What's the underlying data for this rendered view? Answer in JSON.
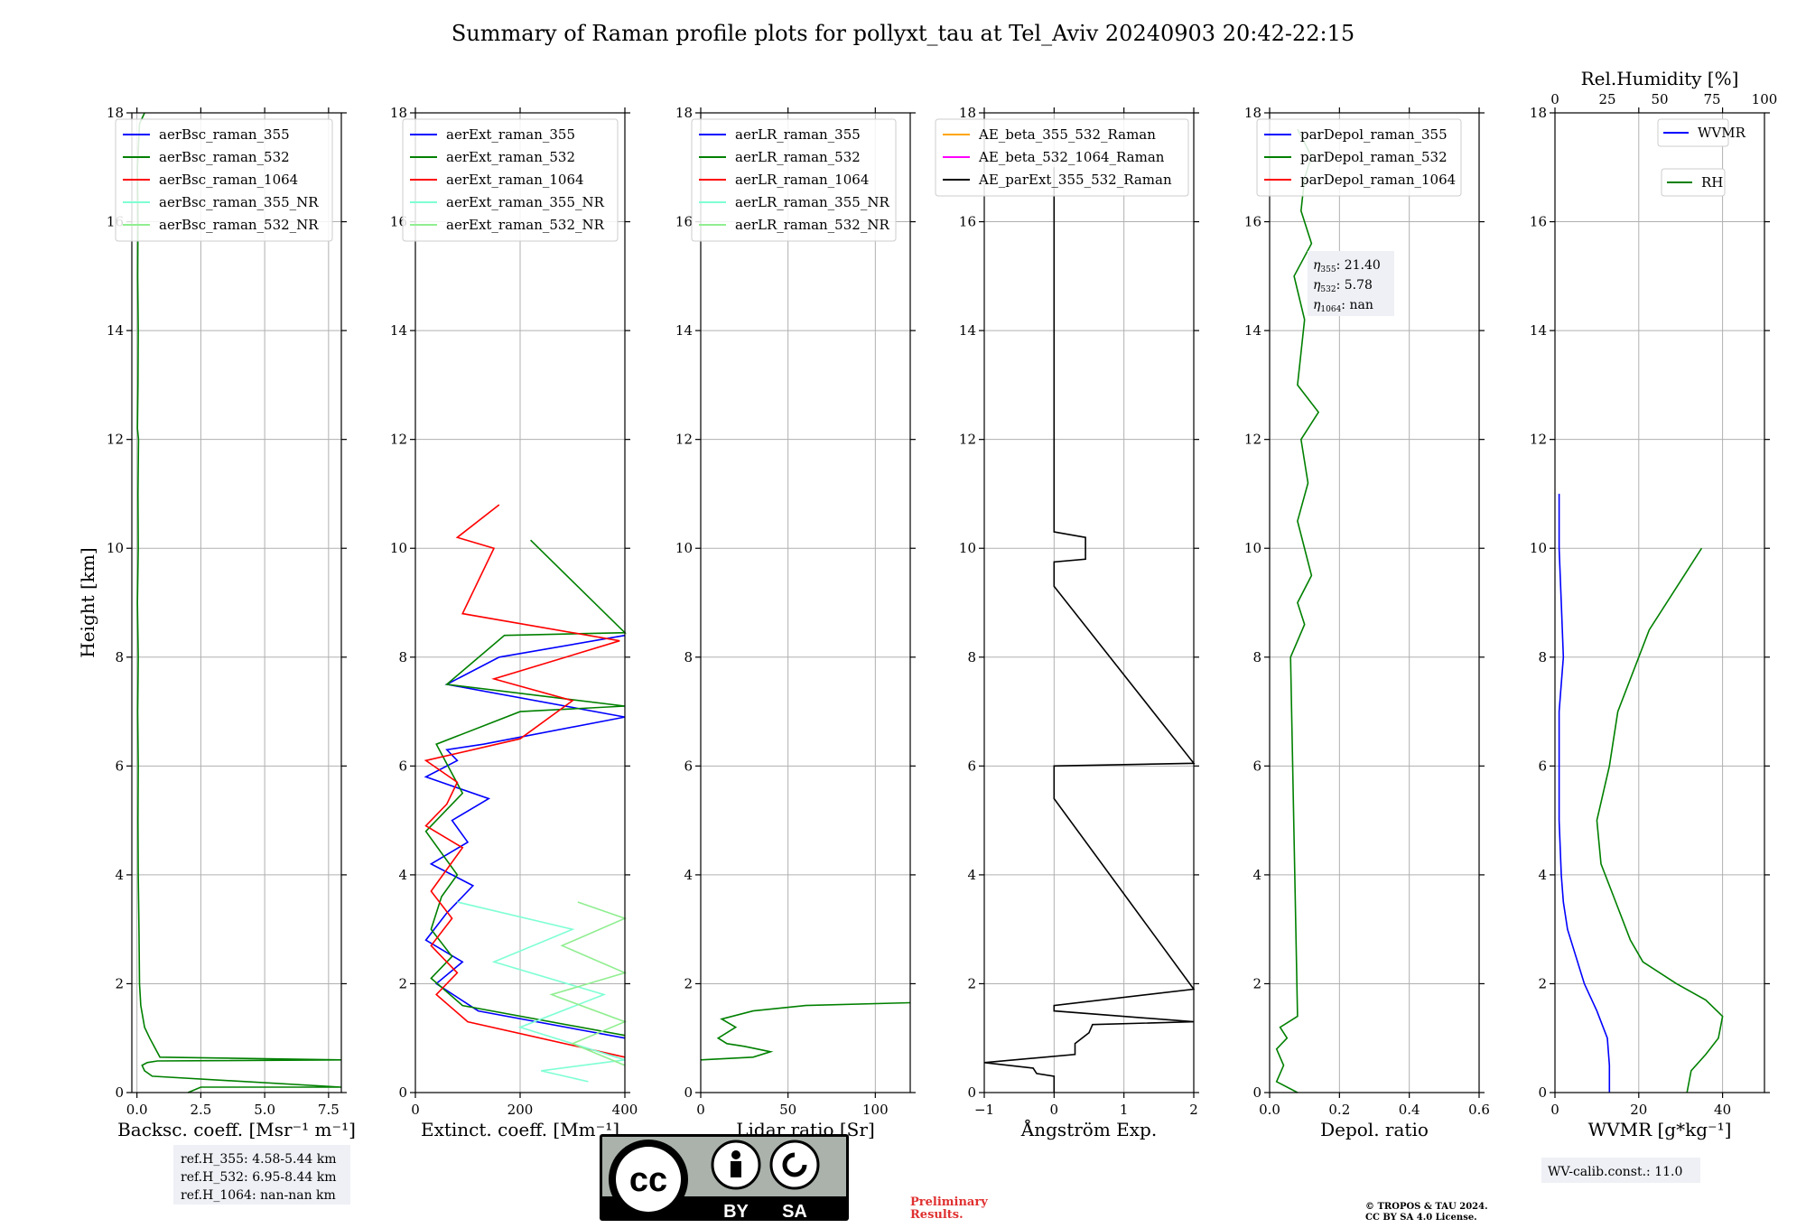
{
  "figure": {
    "title": "Summary of Raman profile plots for pollyxt_tau at Tel_Aviv 20240903 20:42-22:15",
    "preliminary": [
      "Preliminary",
      "Results."
    ],
    "copyright": [
      "© TROPOS & TAU 2024.",
      "CC BY SA 4.0 License."
    ],
    "license_badge": {
      "by": "BY",
      "sa": "SA",
      "cc": "cc"
    },
    "ref_heights": [
      "ref.H_355: 4.58-5.44 km",
      "ref.H_532: 6.95-8.44 km",
      "ref.H_1064: nan-nan km"
    ],
    "wv_calib": "WV-calib.const.: 11.0",
    "eta": [
      "21.40",
      "5.78",
      "nan"
    ],
    "colors": {
      "c355": "#0000ff",
      "c532": "#008000",
      "c1064": "#ff0000",
      "nr355": "#7fffd4",
      "nr532": "#90ee90",
      "ae1": "#ffa500",
      "ae2": "#ff00ff",
      "ae3": "#000000"
    }
  },
  "chart_data": [
    {
      "type": "line",
      "id": "bsc",
      "xlabel": "Backsc. coeff. [Msr⁻¹ m⁻¹]",
      "ylabel": "Height [km]",
      "xlim": [
        -0.2,
        8.0
      ],
      "ylim": [
        0,
        18
      ],
      "xticks": [
        0.0,
        2.5,
        5.0,
        7.5
      ],
      "xticklabels": [
        "0.0",
        "2.5",
        "5.0",
        "7.5"
      ],
      "yticks": [
        0,
        2,
        4,
        6,
        8,
        10,
        12,
        14,
        16,
        18
      ],
      "grid": true,
      "legend": [
        "aerBsc_raman_355",
        "aerBsc_raman_532",
        "aerBsc_raman_1064",
        "aerBsc_raman_355_NR",
        "aerBsc_raman_532_NR"
      ],
      "series": [
        {
          "name": "aerBsc_raman_532",
          "x": [
            2.0,
            2.5,
            8.0,
            0.6,
            0.3,
            0.2,
            0.4,
            0.8,
            8.0,
            0.9,
            0.5,
            0.3,
            0.15,
            0.1,
            0.08,
            0.05,
            0.04,
            0.05,
            0.03,
            0.05,
            0.02,
            0.05,
            0.04,
            0.06,
            0.02,
            0.04,
            0.05,
            0.03,
            0.04,
            0.02,
            0.1,
            0.3
          ],
          "y": [
            0.0,
            0.1,
            0.1,
            0.3,
            0.4,
            0.5,
            0.55,
            0.58,
            0.6,
            0.65,
            1.0,
            1.2,
            1.6,
            2.0,
            3.0,
            4.0,
            5.0,
            6.0,
            7.0,
            8.0,
            9.0,
            10.0,
            11.0,
            12.0,
            12.2,
            13.0,
            14.0,
            15.0,
            16.0,
            17.0,
            17.8,
            18.0
          ]
        }
      ]
    },
    {
      "type": "line",
      "id": "ext",
      "xlabel": "Extinct. coeff. [Mm⁻¹]",
      "xlim": [
        0,
        400
      ],
      "ylim": [
        0,
        18
      ],
      "xticks": [
        0,
        200,
        400
      ],
      "xticklabels": [
        "0",
        "200",
        "400"
      ],
      "yticks": [
        0,
        2,
        4,
        6,
        8,
        10,
        12,
        14,
        16,
        18
      ],
      "grid": true,
      "legend": [
        "aerExt_raman_355",
        "aerExt_raman_532",
        "aerExt_raman_1064",
        "aerExt_raman_355_NR",
        "aerExt_raman_532_NR"
      ],
      "series": [
        {
          "name": "aerExt_raman_355",
          "x": [
            400,
            120,
            40,
            90,
            20,
            60,
            110,
            30,
            100,
            70,
            140,
            20,
            80,
            60,
            130,
            400,
            60,
            160,
            400
          ],
          "y": [
            1.0,
            1.5,
            2.0,
            2.4,
            2.8,
            3.3,
            3.8,
            4.2,
            4.6,
            5.0,
            5.4,
            5.8,
            6.1,
            6.3,
            6.4,
            6.9,
            7.5,
            8.0,
            8.4
          ]
        },
        {
          "name": "aerExt_raman_532",
          "x": [
            400,
            90,
            30,
            70,
            30,
            50,
            80,
            20,
            60,
            90,
            40,
            200,
            400,
            60,
            170,
            400,
            220
          ],
          "y": [
            1.05,
            1.6,
            2.1,
            2.5,
            3.0,
            3.6,
            4.0,
            4.8,
            5.2,
            5.5,
            6.4,
            7.0,
            7.1,
            7.5,
            8.4,
            8.45,
            10.15
          ]
        },
        {
          "name": "aerExt_raman_1064",
          "x": [
            400,
            100,
            40,
            80,
            30,
            70,
            30,
            90,
            20,
            60,
            80,
            20,
            200,
            300,
            150,
            390,
            90,
            150,
            80,
            160
          ],
          "y": [
            0.65,
            1.3,
            1.8,
            2.2,
            2.7,
            3.2,
            3.7,
            4.5,
            4.9,
            5.3,
            5.7,
            6.1,
            6.5,
            7.2,
            7.6,
            8.3,
            8.8,
            10.0,
            10.2,
            10.8
          ]
        },
        {
          "name": "aerExt_raman_355_NR",
          "x": [
            330,
            240,
            400,
            200,
            360,
            150,
            300,
            80
          ],
          "y": [
            0.2,
            0.4,
            0.6,
            1.2,
            1.8,
            2.4,
            3.0,
            3.5
          ]
        },
        {
          "name": "aerExt_raman_532_NR",
          "x": [
            400,
            300,
            400,
            260,
            400,
            280,
            400,
            310
          ],
          "y": [
            0.5,
            0.9,
            1.3,
            1.8,
            2.2,
            2.7,
            3.2,
            3.5
          ]
        }
      ]
    },
    {
      "type": "line",
      "id": "lr",
      "xlabel": "Lidar ratio [Sr]",
      "xlim": [
        0,
        120
      ],
      "ylim": [
        0,
        18
      ],
      "xticks": [
        0,
        50,
        100
      ],
      "xticklabels": [
        "0",
        "50",
        "100"
      ],
      "yticks": [
        0,
        2,
        4,
        6,
        8,
        10,
        12,
        14,
        16,
        18
      ],
      "grid": true,
      "legend": [
        "aerLR_raman_355",
        "aerLR_raman_532",
        "aerLR_raman_1064",
        "aerLR_raman_355_NR",
        "aerLR_raman_532_NR"
      ],
      "series": [
        {
          "name": "aerLR_raman_532",
          "x": [
            0,
            30,
            40,
            25,
            15,
            10,
            20,
            12,
            30,
            60,
            120
          ],
          "y": [
            0.6,
            0.65,
            0.75,
            0.85,
            0.9,
            1.0,
            1.2,
            1.35,
            1.5,
            1.6,
            1.65
          ]
        }
      ]
    },
    {
      "type": "line",
      "id": "ae",
      "xlabel": "Ångström Exp.",
      "xlim": [
        -1,
        2
      ],
      "ylim": [
        0,
        18
      ],
      "xticks": [
        -1,
        0,
        1,
        2
      ],
      "xticklabels": [
        "−1",
        "0",
        "1",
        "2"
      ],
      "yticks": [
        0,
        2,
        4,
        6,
        8,
        10,
        12,
        14,
        16,
        18
      ],
      "grid": true,
      "legend": [
        "AE_beta_355_532_Raman",
        "AE_beta_532_1064_Raman",
        "AE_parExt_355_532_Raman"
      ],
      "series": [
        {
          "name": "AE_parExt_355_532_Raman",
          "x": [
            0.0,
            0.0,
            -0.25,
            -0.3,
            -1.0,
            0.3,
            0.3,
            0.5,
            0.55,
            2.0,
            0.0,
            0.0,
            2.0,
            0.0,
            0.0,
            2.0,
            0.0,
            0.0,
            0.45,
            0.45,
            0.0,
            0.0
          ],
          "y": [
            0.0,
            0.3,
            0.35,
            0.45,
            0.55,
            0.7,
            0.9,
            1.1,
            1.25,
            1.3,
            1.5,
            1.6,
            1.9,
            5.4,
            6.0,
            6.05,
            9.3,
            9.75,
            9.8,
            10.2,
            10.3,
            17.0
          ]
        }
      ]
    },
    {
      "type": "line",
      "id": "depol",
      "xlabel": "Depol. ratio",
      "xlim": [
        0.0,
        0.6
      ],
      "ylim": [
        0,
        18
      ],
      "xticks": [
        0.0,
        0.2,
        0.4,
        0.6
      ],
      "xticklabels": [
        "0.0",
        "0.2",
        "0.4",
        "0.6"
      ],
      "yticks": [
        0,
        2,
        4,
        6,
        8,
        10,
        12,
        14,
        16,
        18
      ],
      "grid": true,
      "legend": [
        "parDepol_raman_355",
        "parDepol_raman_532",
        "parDepol_raman_1064"
      ],
      "series": [
        {
          "name": "parDepol_raman_532",
          "x": [
            0.08,
            0.02,
            0.04,
            0.02,
            0.05,
            0.03,
            0.08,
            0.06,
            0.1,
            0.08,
            0.12,
            0.08,
            0.11,
            0.09,
            0.14,
            0.08,
            0.1,
            0.07,
            0.12,
            0.09,
            0.1,
            0.12,
            0.08
          ],
          "y": [
            0.0,
            0.2,
            0.5,
            0.8,
            1.0,
            1.2,
            1.4,
            8.0,
            8.6,
            9.0,
            9.5,
            10.5,
            11.2,
            12.0,
            12.5,
            13.0,
            14.2,
            15.0,
            15.6,
            16.2,
            16.8,
            17.2,
            17.7
          ]
        }
      ]
    },
    {
      "type": "line",
      "id": "wv",
      "xlabel": "WVMR [g*kg⁻¹]",
      "x2label": "Rel.Humidity [%]",
      "xlim": [
        0,
        50
      ],
      "x2lim": [
        0,
        100
      ],
      "ylim": [
        0,
        18
      ],
      "xticks": [
        0,
        20,
        40
      ],
      "xticklabels": [
        "0",
        "20",
        "40"
      ],
      "x2ticks": [
        0,
        25,
        50,
        75,
        100
      ],
      "x2ticklabels": [
        "0",
        "25",
        "50",
        "75",
        "100"
      ],
      "yticks": [
        0,
        2,
        4,
        6,
        8,
        10,
        12,
        14,
        16,
        18
      ],
      "grid": true,
      "legend": [
        "WVMR",
        "RH"
      ],
      "series": [
        {
          "name": "WVMR",
          "x": [
            13,
            13,
            12.5,
            10,
            7,
            5,
            3,
            2,
            1.5,
            1,
            1,
            1,
            2,
            1.5,
            1,
            1
          ],
          "y": [
            0.0,
            0.5,
            1.0,
            1.5,
            2.0,
            2.5,
            3.0,
            3.5,
            4.0,
            5.0,
            6.0,
            7.0,
            8.0,
            9.0,
            10.0,
            11.0
          ]
        },
        {
          "name": "RH",
          "x": [
            63,
            65,
            72,
            78,
            80,
            72,
            58,
            42,
            36,
            28,
            22,
            20,
            26,
            30,
            45,
            70
          ],
          "y": [
            0.0,
            0.4,
            0.7,
            1.0,
            1.4,
            1.7,
            2.0,
            2.4,
            2.8,
            3.6,
            4.2,
            5.0,
            6.0,
            7.0,
            8.5,
            10.0
          ]
        }
      ]
    }
  ]
}
